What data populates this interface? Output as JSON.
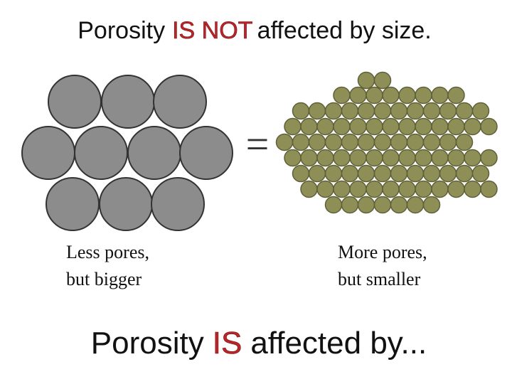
{
  "title": {
    "before": "Porosity",
    "emphasis": "IS NOT",
    "after": "affected by size."
  },
  "equals": "=",
  "left_caption": [
    "Less pores,",
    "but bigger"
  ],
  "right_caption": [
    "More pores,",
    "but smaller"
  ],
  "footer": {
    "before": "Porosity",
    "emphasis": "IS",
    "after": "affected by..."
  }
}
